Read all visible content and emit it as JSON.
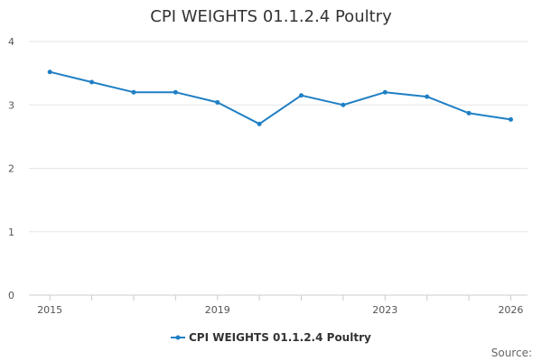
{
  "source_label": "Source:",
  "colors": {
    "series": "#1f7fc4",
    "grid": "#e6e6e6",
    "axis": "#cccccc"
  },
  "chart_data": {
    "type": "line",
    "title": "CPI WEIGHTS 01.1.2.4 Poultry",
    "xlabel": "",
    "ylabel": "",
    "x": [
      2015,
      2016,
      2017,
      2018,
      2019,
      2020,
      2021,
      2022,
      2023,
      2024,
      2025,
      2026
    ],
    "x_tick_labels": [
      "2015",
      "2019",
      "2023",
      "2026"
    ],
    "x_tick_values": [
      2015,
      2019,
      2023,
      2026
    ],
    "ylim": [
      0,
      4
    ],
    "y_ticks": [
      0,
      1,
      2,
      3,
      4
    ],
    "grid": true,
    "legend_position": "bottom",
    "series": [
      {
        "name": "CPI WEIGHTS 01.1.2.4 Poultry",
        "values": [
          3.52,
          3.36,
          3.2,
          3.2,
          3.04,
          2.7,
          3.15,
          3.0,
          3.2,
          3.13,
          2.87,
          2.77
        ]
      }
    ]
  }
}
